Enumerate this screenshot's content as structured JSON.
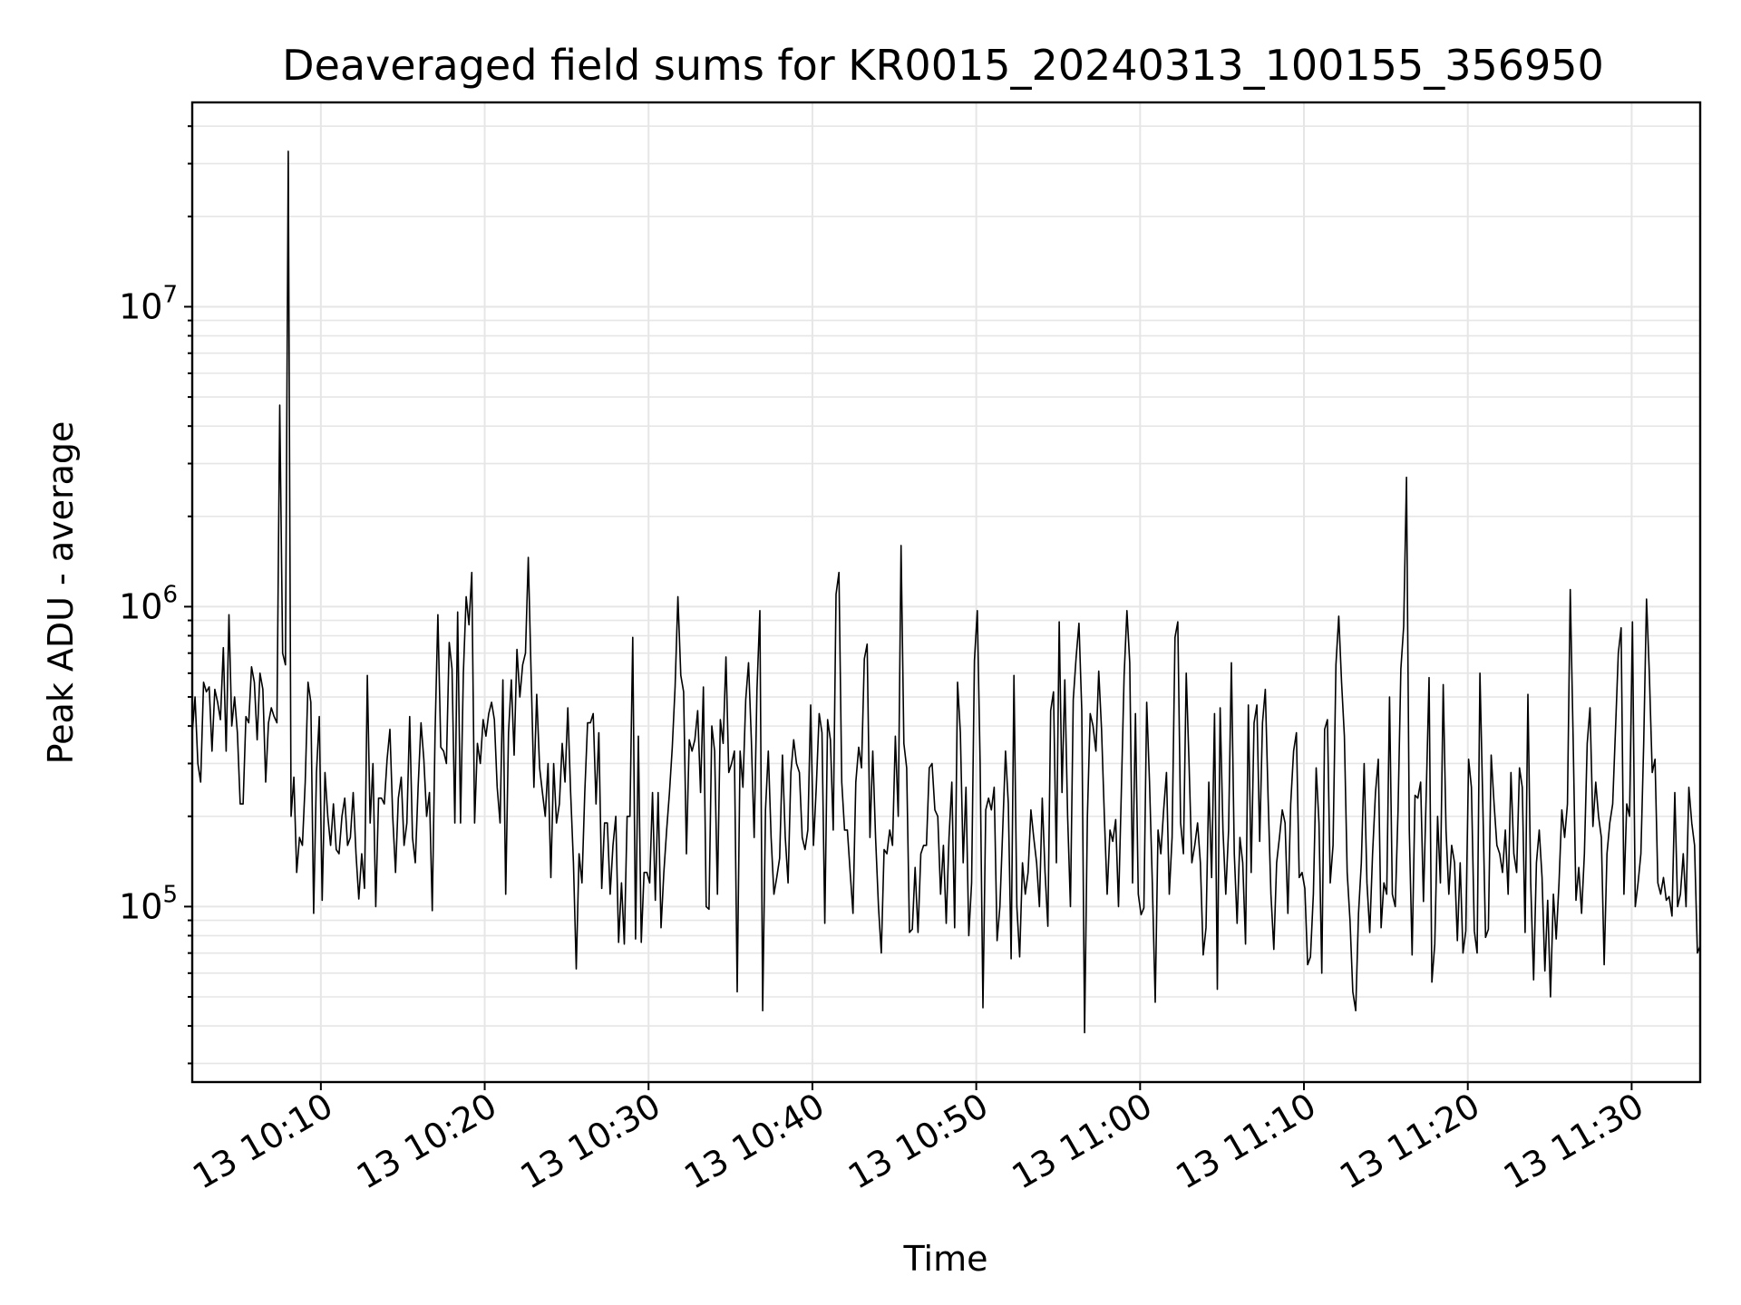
{
  "chart_data": {
    "type": "line",
    "title": "Deaveraged field sums for KR0015_20240313_100155_356950",
    "xlabel": "Time",
    "ylabel": "Peak ADU - average",
    "yscale": "log",
    "grid": true,
    "line_color": "#000000",
    "grid_color": "#e6e6e6",
    "x_range": [
      "2024-03-13 10:02:09",
      "2024-03-13 11:34:11"
    ],
    "ylim": [
      26000,
      48000000
    ],
    "x_ticks": [
      {
        "t": "2024-03-13 10:10",
        "label": "13 10:10"
      },
      {
        "t": "2024-03-13 10:20",
        "label": "13 10:20"
      },
      {
        "t": "2024-03-13 10:30",
        "label": "13 10:30"
      },
      {
        "t": "2024-03-13 10:40",
        "label": "13 10:40"
      },
      {
        "t": "2024-03-13 10:50",
        "label": "13 10:50"
      },
      {
        "t": "2024-03-13 11:00",
        "label": "13 11:00"
      },
      {
        "t": "2024-03-13 11:10",
        "label": "13 11:10"
      },
      {
        "t": "2024-03-13 11:20",
        "label": "13 11:20"
      },
      {
        "t": "2024-03-13 11:30",
        "label": "13 11:30"
      }
    ],
    "y_ticks": [
      {
        "value": 100000,
        "base": "10",
        "exp": "5"
      },
      {
        "value": 1000000,
        "base": "10",
        "exp": "6"
      },
      {
        "value": 10000000,
        "base": "10",
        "exp": "7"
      }
    ],
    "series": [
      {
        "x_start": "2024-03-13 10:02:09",
        "x_end": "2024-03-13 11:34:11",
        "values": [
          380000,
          500000,
          300000,
          260000,
          560000,
          520000,
          540000,
          330000,
          530000,
          480000,
          420000,
          730000,
          330000,
          940000,
          400000,
          500000,
          380000,
          220000,
          220000,
          430000,
          410000,
          630000,
          560000,
          360000,
          600000,
          530000,
          260000,
          410000,
          460000,
          430000,
          410000,
          4700000,
          700000,
          640000,
          33000000,
          200000,
          270000,
          130000,
          170000,
          160000,
          260000,
          560000,
          480000,
          95000,
          280000,
          430000,
          105000,
          280000,
          200000,
          160000,
          220000,
          155000,
          150000,
          200000,
          230000,
          160000,
          170000,
          240000,
          150000,
          106000,
          150000,
          115000,
          590000,
          190000,
          300000,
          100000,
          230000,
          230000,
          220000,
          310000,
          390000,
          200000,
          130000,
          230000,
          270000,
          160000,
          190000,
          430000,
          170000,
          140000,
          250000,
          410000,
          310000,
          200000,
          240000,
          97000,
          380000,
          940000,
          340000,
          330000,
          300000,
          760000,
          620000,
          190000,
          960000,
          190000,
          600000,
          1080000,
          870000,
          1300000,
          190000,
          350000,
          300000,
          420000,
          370000,
          440000,
          480000,
          420000,
          250000,
          190000,
          570000,
          110000,
          380000,
          570000,
          320000,
          720000,
          500000,
          640000,
          700000,
          1460000,
          600000,
          250000,
          510000,
          290000,
          240000,
          200000,
          300000,
          125000,
          300000,
          190000,
          220000,
          350000,
          260000,
          460000,
          240000,
          140000,
          62000,
          150000,
          120000,
          240000,
          410000,
          410000,
          440000,
          220000,
          380000,
          115000,
          190000,
          190000,
          110000,
          160000,
          200000,
          76000,
          120000,
          75000,
          200000,
          200000,
          790000,
          78000,
          370000,
          76000,
          130000,
          130000,
          120000,
          240000,
          105000,
          240000,
          85000,
          130000,
          180000,
          240000,
          340000,
          540000,
          1080000,
          590000,
          520000,
          150000,
          360000,
          330000,
          360000,
          450000,
          240000,
          540000,
          100000,
          98000,
          400000,
          330000,
          110000,
          420000,
          350000,
          680000,
          280000,
          300000,
          330000,
          52000,
          330000,
          250000,
          490000,
          650000,
          360000,
          170000,
          530000,
          970000,
          45000,
          210000,
          330000,
          170000,
          110000,
          125000,
          145000,
          320000,
          170000,
          120000,
          280000,
          360000,
          300000,
          280000,
          170000,
          155000,
          180000,
          470000,
          160000,
          250000,
          440000,
          380000,
          88000,
          420000,
          360000,
          180000,
          1100000,
          1300000,
          260000,
          180000,
          180000,
          130000,
          95000,
          260000,
          340000,
          290000,
          670000,
          750000,
          170000,
          330000,
          170000,
          100000,
          70000,
          155000,
          150000,
          180000,
          160000,
          370000,
          200000,
          1600000,
          350000,
          290000,
          82000,
          84000,
          135000,
          82000,
          150000,
          160000,
          160000,
          290000,
          300000,
          210000,
          200000,
          110000,
          160000,
          88000,
          170000,
          260000,
          85000,
          560000,
          380000,
          140000,
          250000,
          80000,
          120000,
          660000,
          970000,
          300000,
          46000,
          210000,
          230000,
          210000,
          250000,
          77000,
          100000,
          180000,
          330000,
          220000,
          67000,
          590000,
          100000,
          68000,
          140000,
          110000,
          130000,
          210000,
          170000,
          140000,
          100000,
          230000,
          130000,
          86000,
          450000,
          520000,
          140000,
          890000,
          240000,
          570000,
          200000,
          100000,
          490000,
          680000,
          880000,
          450000,
          38000,
          200000,
          440000,
          400000,
          330000,
          610000,
          390000,
          200000,
          110000,
          180000,
          165000,
          195000,
          100000,
          240000,
          590000,
          970000,
          650000,
          120000,
          440000,
          110000,
          94000,
          99000,
          480000,
          260000,
          120000,
          48000,
          180000,
          150000,
          210000,
          280000,
          110000,
          170000,
          790000,
          890000,
          190000,
          150000,
          600000,
          300000,
          140000,
          160000,
          190000,
          140000,
          69000,
          85000,
          260000,
          125000,
          440000,
          53000,
          460000,
          180000,
          110000,
          180000,
          650000,
          150000,
          88000,
          170000,
          140000,
          75000,
          470000,
          130000,
          410000,
          470000,
          165000,
          410000,
          530000,
          230000,
          110000,
          72000,
          140000,
          170000,
          210000,
          190000,
          95000,
          220000,
          330000,
          380000,
          125000,
          130000,
          115000,
          64000,
          68000,
          110000,
          290000,
          190000,
          60000,
          390000,
          420000,
          120000,
          160000,
          640000,
          930000,
          560000,
          370000,
          130000,
          90000,
          52000,
          45000,
          95000,
          140000,
          300000,
          120000,
          82000,
          150000,
          240000,
          310000,
          85000,
          120000,
          110000,
          500000,
          110000,
          100000,
          210000,
          620000,
          860000,
          2700000,
          180000,
          69000,
          235000,
          230000,
          260000,
          104000,
          240000,
          580000,
          56000,
          75000,
          200000,
          120000,
          550000,
          180000,
          110000,
          160000,
          140000,
          77000,
          140000,
          70000,
          83000,
          310000,
          250000,
          83000,
          70000,
          600000,
          225000,
          79000,
          84000,
          320000,
          220000,
          160000,
          150000,
          130000,
          180000,
          110000,
          280000,
          150000,
          130000,
          290000,
          250000,
          82000,
          510000,
          120000,
          57000,
          140000,
          180000,
          125000,
          61000,
          105000,
          50000,
          110000,
          78000,
          120000,
          210000,
          170000,
          220000,
          1140000,
          360000,
          105000,
          135000,
          95000,
          150000,
          350000,
          460000,
          185000,
          260000,
          200000,
          170000,
          64000,
          150000,
          190000,
          220000,
          390000,
          700000,
          850000,
          110000,
          220000,
          200000,
          890000,
          100000,
          120000,
          150000,
          350000,
          1060000,
          600000,
          280000,
          310000,
          120000,
          110000,
          125000,
          105000,
          108000,
          93000,
          240000,
          100000,
          110000,
          150000,
          100000,
          250000,
          190000,
          160000,
          70000,
          74000
        ]
      }
    ]
  }
}
